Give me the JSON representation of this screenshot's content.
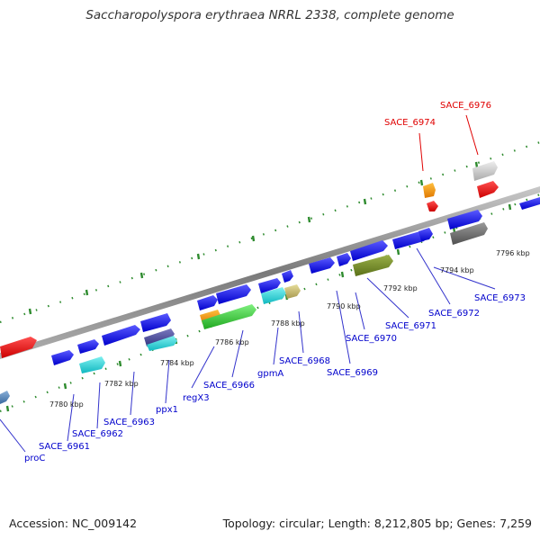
{
  "title": "Saccharopolyspora erythraea NRRL 2338, complete genome",
  "footer": {
    "accession": "Accession: NC_009142",
    "topology": "Topology: circular; Length: 8,212,805 bp; Genes: 7,259"
  },
  "colors": {
    "backbone": "#8a8a8a",
    "tick": "#2e8b2e",
    "gene_label": "#0000cc",
    "highlight_label": "#e00000",
    "callout_blue": "#3333cc",
    "callout_red": "#e00000"
  },
  "scale_labels": [
    "7780 kbp",
    "7782 kbp",
    "7784 kbp",
    "7786 kbp",
    "7788 kbp",
    "7790 kbp",
    "7792 kbp",
    "7794 kbp",
    "7796 kbp"
  ],
  "gene_labels": [
    {
      "text": "proC",
      "color": "#0000cc"
    },
    {
      "text": "SACE_6961",
      "color": "#0000cc"
    },
    {
      "text": "SACE_6962",
      "color": "#0000cc"
    },
    {
      "text": "SACE_6963",
      "color": "#0000cc"
    },
    {
      "text": "ppx1",
      "color": "#0000cc"
    },
    {
      "text": "regX3",
      "color": "#0000cc"
    },
    {
      "text": "SACE_6966",
      "color": "#0000cc"
    },
    {
      "text": "gpmA",
      "color": "#0000cc"
    },
    {
      "text": "SACE_6968",
      "color": "#0000cc"
    },
    {
      "text": "SACE_6969",
      "color": "#0000cc"
    },
    {
      "text": "SACE_6970",
      "color": "#0000cc"
    },
    {
      "text": "SACE_6971",
      "color": "#0000cc"
    },
    {
      "text": "SACE_6972",
      "color": "#0000cc"
    },
    {
      "text": "SACE_6973",
      "color": "#0000cc"
    },
    {
      "text": "SACE_6974",
      "color": "#e00000"
    },
    {
      "text": "SACE_6976",
      "color": "#e00000"
    }
  ]
}
